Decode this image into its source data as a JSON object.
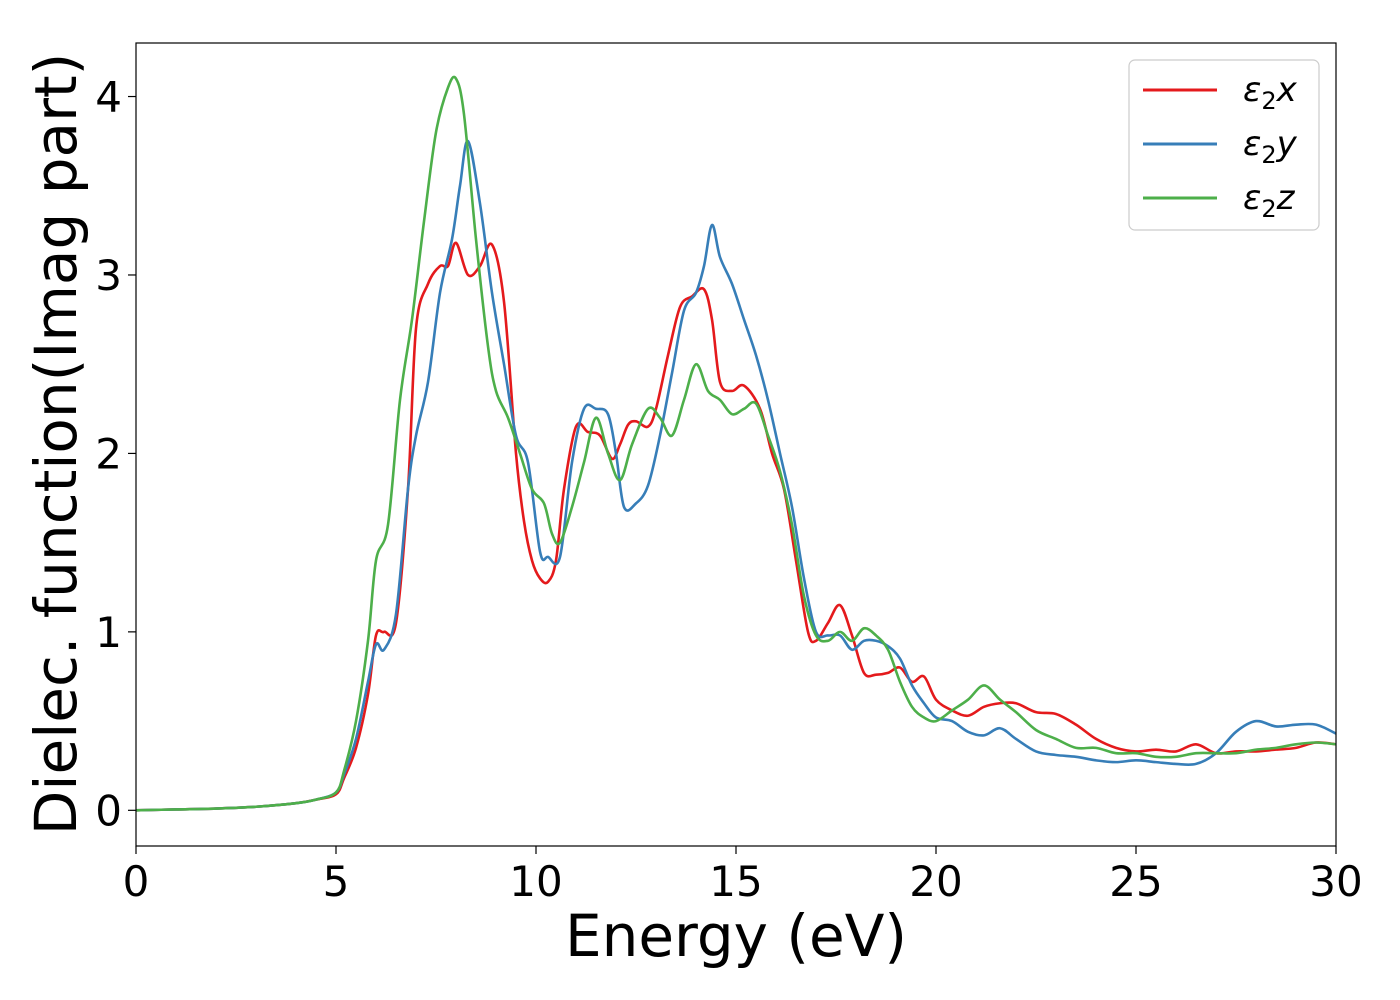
{
  "chart_data": {
    "type": "line",
    "xlabel": "Energy (eV)",
    "ylabel": "Dielec. function(Imag part)",
    "xlim": [
      0,
      30
    ],
    "ylim": [
      -0.2,
      4.3
    ],
    "xticks": [
      0,
      5,
      10,
      15,
      20,
      25,
      30
    ],
    "yticks": [
      0,
      1,
      2,
      3,
      4
    ],
    "grid": false,
    "legend_position": "top-right",
    "series": [
      {
        "name": "ε2x",
        "label_base": "ε",
        "label_sub": "2",
        "label_var": "x",
        "color": "#e41a1c",
        "x": [
          0,
          1,
          2,
          3,
          4,
          4.5,
          5,
          5.2,
          5.5,
          5.8,
          6.0,
          6.2,
          6.5,
          6.8,
          7.0,
          7.3,
          7.6,
          7.8,
          8.0,
          8.3,
          8.6,
          8.9,
          9.2,
          9.5,
          9.7,
          9.9,
          10.1,
          10.3,
          10.5,
          10.7,
          11.0,
          11.3,
          11.6,
          11.9,
          12.1,
          12.3,
          12.5,
          12.8,
          13.0,
          13.3,
          13.6,
          13.9,
          14.2,
          14.4,
          14.6,
          14.9,
          15.2,
          15.6,
          15.9,
          16.2,
          16.5,
          16.8,
          17.0,
          17.3,
          17.6,
          17.9,
          18.2,
          18.5,
          18.8,
          19.1,
          19.4,
          19.7,
          20.0,
          20.4,
          20.8,
          21.2,
          21.6,
          22.0,
          22.5,
          23.0,
          23.5,
          24.0,
          24.5,
          25.0,
          25.5,
          26.0,
          26.5,
          27.0,
          27.5,
          28.0,
          28.5,
          29.0,
          29.5,
          30
        ],
        "values": [
          0,
          0.005,
          0.01,
          0.02,
          0.04,
          0.06,
          0.09,
          0.18,
          0.35,
          0.65,
          0.98,
          1.0,
          1.05,
          1.8,
          2.7,
          2.95,
          3.05,
          3.05,
          3.18,
          3.0,
          3.05,
          3.17,
          2.85,
          2.0,
          1.62,
          1.4,
          1.3,
          1.28,
          1.4,
          1.8,
          2.15,
          2.12,
          2.1,
          1.97,
          2.05,
          2.16,
          2.18,
          2.15,
          2.25,
          2.55,
          2.82,
          2.88,
          2.92,
          2.75,
          2.4,
          2.35,
          2.38,
          2.25,
          2.0,
          1.8,
          1.4,
          1.0,
          0.95,
          1.05,
          1.15,
          0.98,
          0.77,
          0.76,
          0.77,
          0.8,
          0.72,
          0.75,
          0.62,
          0.56,
          0.53,
          0.58,
          0.6,
          0.6,
          0.55,
          0.54,
          0.48,
          0.4,
          0.35,
          0.33,
          0.34,
          0.33,
          0.37,
          0.32,
          0.33,
          0.33,
          0.34,
          0.35,
          0.38,
          0.37
        ]
      },
      {
        "name": "ε2y",
        "label_base": "ε",
        "label_sub": "2",
        "label_var": "y",
        "color": "#377eb8",
        "x": [
          0,
          1,
          2,
          3,
          4,
          4.5,
          5,
          5.2,
          5.5,
          5.8,
          6.0,
          6.2,
          6.5,
          6.8,
          7.0,
          7.3,
          7.6,
          7.9,
          8.1,
          8.3,
          8.6,
          8.9,
          9.2,
          9.5,
          9.8,
          10.1,
          10.3,
          10.6,
          10.9,
          11.2,
          11.5,
          11.8,
          12.0,
          12.2,
          12.5,
          12.8,
          13.1,
          13.4,
          13.7,
          14.0,
          14.2,
          14.4,
          14.6,
          14.9,
          15.2,
          15.5,
          15.8,
          16.1,
          16.4,
          16.7,
          17.0,
          17.3,
          17.6,
          17.9,
          18.2,
          18.5,
          18.8,
          19.1,
          19.4,
          19.7,
          20.0,
          20.4,
          20.8,
          21.2,
          21.6,
          22.0,
          22.5,
          23.0,
          23.5,
          24.0,
          24.5,
          25.0,
          25.5,
          26.0,
          26.5,
          27.0,
          27.5,
          28.0,
          28.5,
          29.0,
          29.5,
          30
        ],
        "values": [
          0,
          0.005,
          0.01,
          0.02,
          0.04,
          0.06,
          0.1,
          0.2,
          0.4,
          0.72,
          0.93,
          0.9,
          1.1,
          1.8,
          2.1,
          2.4,
          2.9,
          3.2,
          3.5,
          3.75,
          3.4,
          2.9,
          2.5,
          2.1,
          1.95,
          1.45,
          1.42,
          1.42,
          1.95,
          2.25,
          2.25,
          2.22,
          2.0,
          1.7,
          1.72,
          1.82,
          2.1,
          2.45,
          2.8,
          2.9,
          3.05,
          3.28,
          3.1,
          2.95,
          2.75,
          2.55,
          2.3,
          2.0,
          1.7,
          1.3,
          1.0,
          0.98,
          0.98,
          0.9,
          0.95,
          0.95,
          0.92,
          0.85,
          0.7,
          0.6,
          0.52,
          0.5,
          0.44,
          0.42,
          0.46,
          0.4,
          0.33,
          0.31,
          0.3,
          0.28,
          0.27,
          0.28,
          0.27,
          0.26,
          0.26,
          0.32,
          0.44,
          0.5,
          0.47,
          0.48,
          0.48,
          0.43
        ]
      },
      {
        "name": "ε2z",
        "label_base": "ε",
        "label_sub": "2",
        "label_var": "z",
        "color": "#4daf4a",
        "x": [
          0,
          1,
          2,
          3,
          4,
          4.5,
          5,
          5.2,
          5.5,
          5.8,
          6.0,
          6.3,
          6.6,
          6.9,
          7.2,
          7.5,
          7.8,
          8.0,
          8.2,
          8.5,
          8.8,
          9.0,
          9.3,
          9.6,
          9.9,
          10.2,
          10.4,
          10.6,
          10.9,
          11.2,
          11.5,
          11.8,
          12.1,
          12.4,
          12.8,
          13.1,
          13.4,
          13.7,
          14.0,
          14.3,
          14.6,
          14.9,
          15.2,
          15.5,
          15.8,
          16.1,
          16.4,
          16.7,
          17.0,
          17.3,
          17.6,
          17.9,
          18.2,
          18.5,
          18.8,
          19.1,
          19.4,
          19.7,
          20.0,
          20.4,
          20.8,
          21.2,
          21.6,
          22.0,
          22.5,
          23.0,
          23.5,
          24.0,
          24.5,
          25.0,
          25.5,
          26.0,
          26.5,
          27.0,
          27.5,
          28.0,
          28.5,
          29.0,
          29.5,
          30
        ],
        "values": [
          0,
          0.005,
          0.01,
          0.02,
          0.04,
          0.06,
          0.1,
          0.22,
          0.5,
          0.95,
          1.4,
          1.6,
          2.3,
          2.75,
          3.3,
          3.8,
          4.05,
          4.1,
          3.9,
          3.2,
          2.6,
          2.35,
          2.2,
          2.0,
          1.8,
          1.72,
          1.55,
          1.5,
          1.7,
          1.95,
          2.2,
          2.0,
          1.85,
          2.05,
          2.25,
          2.2,
          2.1,
          2.3,
          2.5,
          2.35,
          2.3,
          2.22,
          2.25,
          2.28,
          2.1,
          1.9,
          1.6,
          1.2,
          0.98,
          0.95,
          1.0,
          0.95,
          1.02,
          0.98,
          0.9,
          0.72,
          0.58,
          0.52,
          0.5,
          0.56,
          0.62,
          0.7,
          0.62,
          0.55,
          0.45,
          0.4,
          0.35,
          0.35,
          0.32,
          0.32,
          0.3,
          0.3,
          0.32,
          0.32,
          0.32,
          0.34,
          0.35,
          0.37,
          0.38,
          0.37
        ]
      }
    ]
  }
}
